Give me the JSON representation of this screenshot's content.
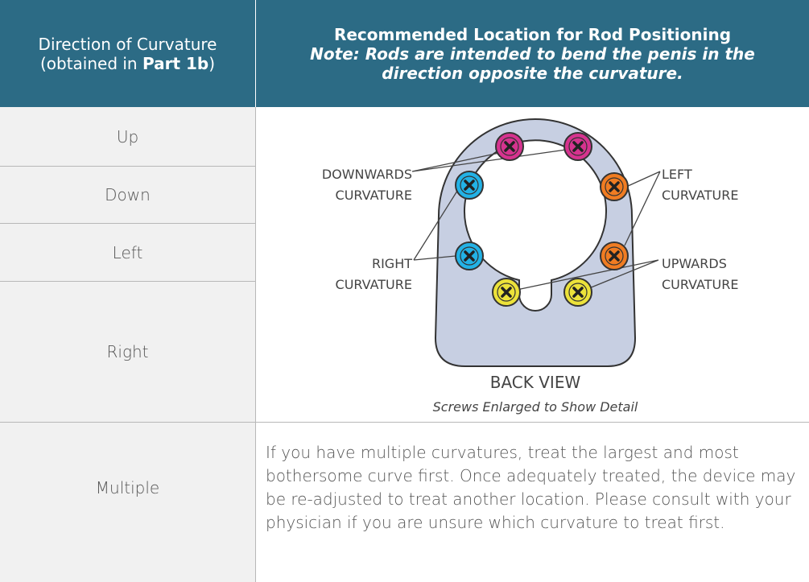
{
  "header": {
    "left": [
      "Direction of Curvature",
      "(obtained in",
      "Part 1b",
      ")"
    ],
    "right": {
      "title": "Recommended Location for Rod Positioning",
      "note": "Note: Rods are intended to bend the penis in the direction opposite the curvature."
    }
  },
  "rows": [
    "Up",
    "Down",
    "Left",
    "Right",
    "Multiple"
  ],
  "diagram": {
    "downwards": [
      "DOWNWARDS",
      "CURVATURE"
    ],
    "left": [
      "LEFT",
      "CURVATURE"
    ],
    "right": [
      "RIGHT",
      "CURVATURE"
    ],
    "upwards": [
      "UPWARDS",
      "CURVATURE"
    ],
    "caption": "BACK VIEW",
    "subcaption": "Screws Enlarged to Show Detail"
  },
  "multiple_text": "If you have multiple curvatures, treat the largest and most bothersome curve first. Once adequately treated, the device may be re-adjusted to treat another location. Please consult with your physician if you are unsure which curvature to treat first."
}
